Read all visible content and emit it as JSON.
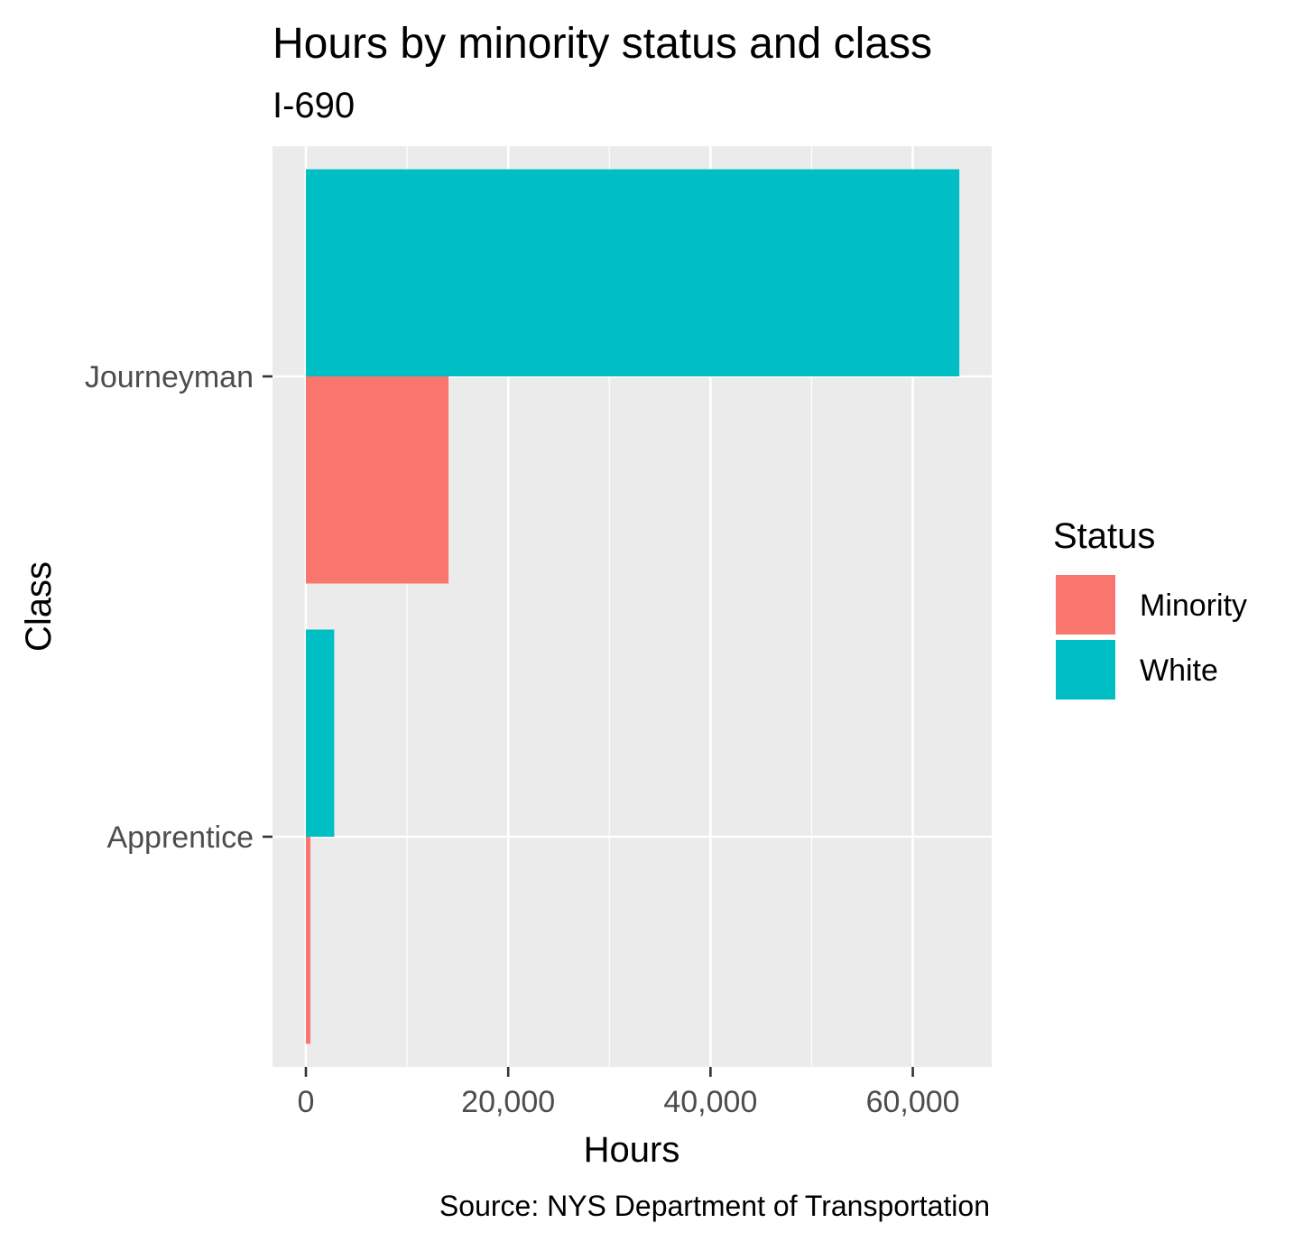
{
  "chart_data": {
    "type": "bar",
    "orientation": "horizontal",
    "title": "Hours by minority status and class",
    "subtitle": "I-690",
    "caption": "Source: NYS Department of Transportation",
    "xlabel": "Hours",
    "ylabel": "Class",
    "categories": [
      "Apprentice",
      "Journeyman"
    ],
    "series": [
      {
        "name": "Minority",
        "color": "#F8766D",
        "values": [
          450,
          14100
        ]
      },
      {
        "name": "White",
        "color": "#00BFC4",
        "values": [
          2800,
          64600
        ]
      }
    ],
    "xlim": [
      -3300,
      67800
    ],
    "x_ticks": [
      0,
      20000,
      40000,
      60000
    ],
    "x_tick_labels": [
      "0",
      "20,000",
      "40,000",
      "60,000"
    ],
    "grid": true,
    "legend": {
      "title": "Status",
      "position": "right"
    },
    "colors": {
      "panel": "#EBEBEB",
      "grid": "#FFFFFF",
      "text": "#000000",
      "tick_text": "#4D4D4D"
    }
  }
}
